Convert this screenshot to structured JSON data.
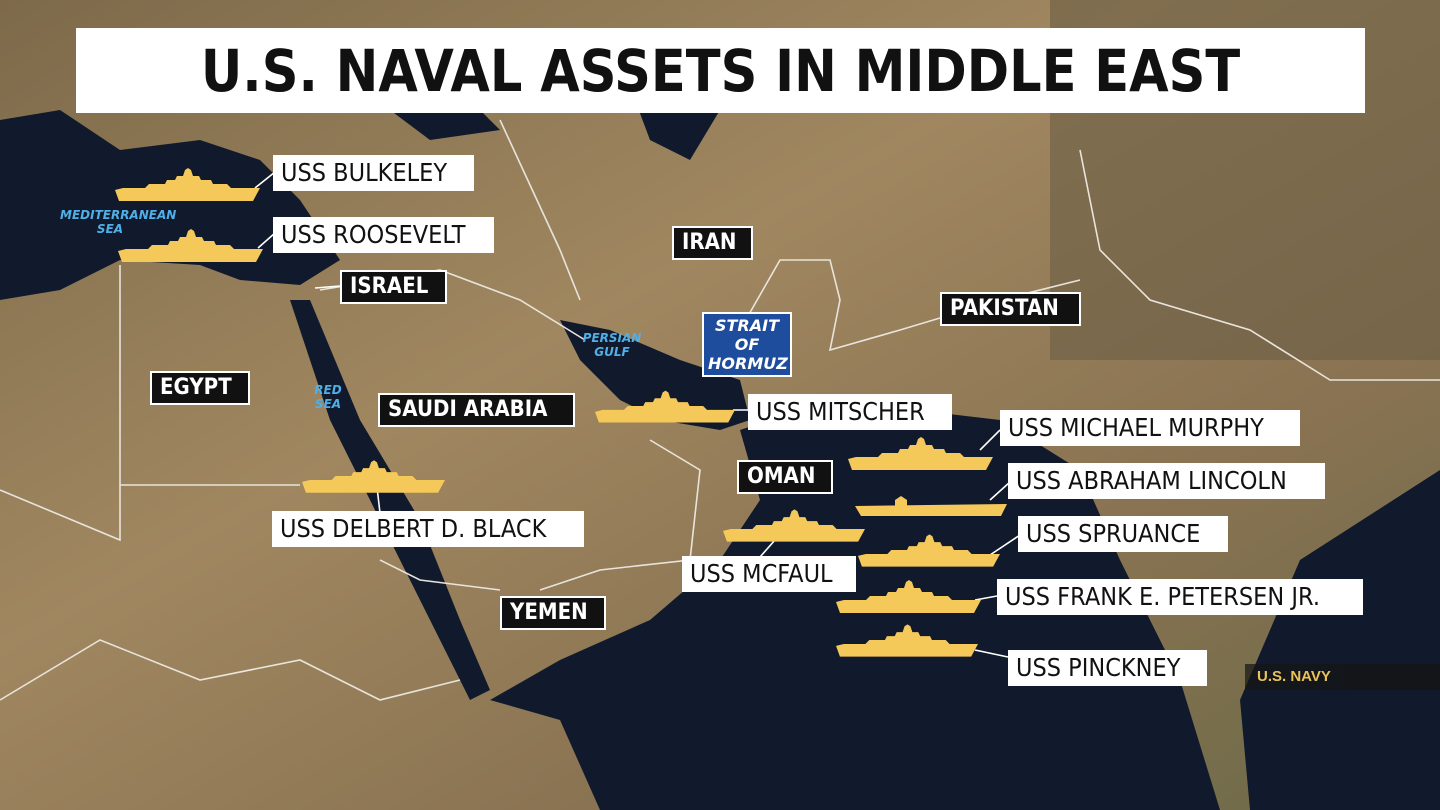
{
  "title": "U.S. NAVAL ASSETS IN MIDDLE EAST",
  "colors": {
    "ship": "#f5c85a",
    "water": "#101a2c",
    "land": "#8d7a58",
    "strait_box": "#1d4d9c",
    "sea_label": "#4fb0e8",
    "credit": "#e9c25a"
  },
  "ships": [
    {
      "name": "USS BULKELEY",
      "icon": "destroyer-icon"
    },
    {
      "name": "USS ROOSEVELT",
      "icon": "destroyer-icon"
    },
    {
      "name": "USS MITSCHER",
      "icon": "destroyer-icon"
    },
    {
      "name": "USS DELBERT D. BLACK",
      "icon": "destroyer-icon"
    },
    {
      "name": "USS MICHAEL MURPHY",
      "icon": "destroyer-icon"
    },
    {
      "name": "USS ABRAHAM LINCOLN",
      "icon": "aircraft-carrier-icon"
    },
    {
      "name": "USS MCFAUL",
      "icon": "destroyer-icon"
    },
    {
      "name": "USS SPRUANCE",
      "icon": "destroyer-icon"
    },
    {
      "name": "USS FRANK E. PETERSEN JR.",
      "icon": "destroyer-icon"
    },
    {
      "name": "USS PINCKNEY",
      "icon": "destroyer-icon"
    }
  ],
  "countries": [
    "IRAN",
    "ISRAEL",
    "PAKISTAN",
    "EGYPT",
    "SAUDI ARABIA",
    "OMAN",
    "YEMEN"
  ],
  "strait": "STRAIT OF HORMUZ",
  "seas": {
    "mediterranean": "MEDITERRANEAN SEA",
    "red": "RED SEA",
    "persian": "PERSIAN GULF"
  },
  "credit": "U.S. NAVY"
}
